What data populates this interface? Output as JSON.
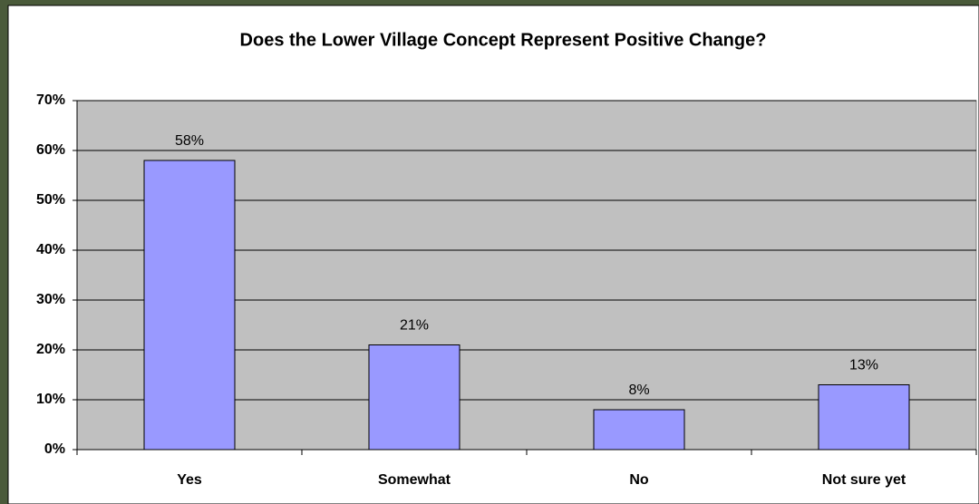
{
  "chart_data": {
    "type": "bar",
    "title": "Does the Lower Village Concept Represent Positive Change?",
    "categories": [
      "Yes",
      "Somewhat",
      "No",
      "Not sure yet"
    ],
    "values": [
      58,
      21,
      8,
      13
    ],
    "value_labels": [
      "58%",
      "21%",
      "8%",
      "13%"
    ],
    "color": "#9999ff",
    "ylim": [
      0,
      70
    ],
    "yticks": [
      {
        "value": 0,
        "label": "0%"
      },
      {
        "value": 10,
        "label": "10%"
      },
      {
        "value": 20,
        "label": "20%"
      },
      {
        "value": 30,
        "label": "30%"
      },
      {
        "value": 40,
        "label": "40%"
      },
      {
        "value": 50,
        "label": "50%"
      },
      {
        "value": 60,
        "label": "60%"
      },
      {
        "value": 70,
        "label": "70%"
      }
    ],
    "grid": true
  }
}
